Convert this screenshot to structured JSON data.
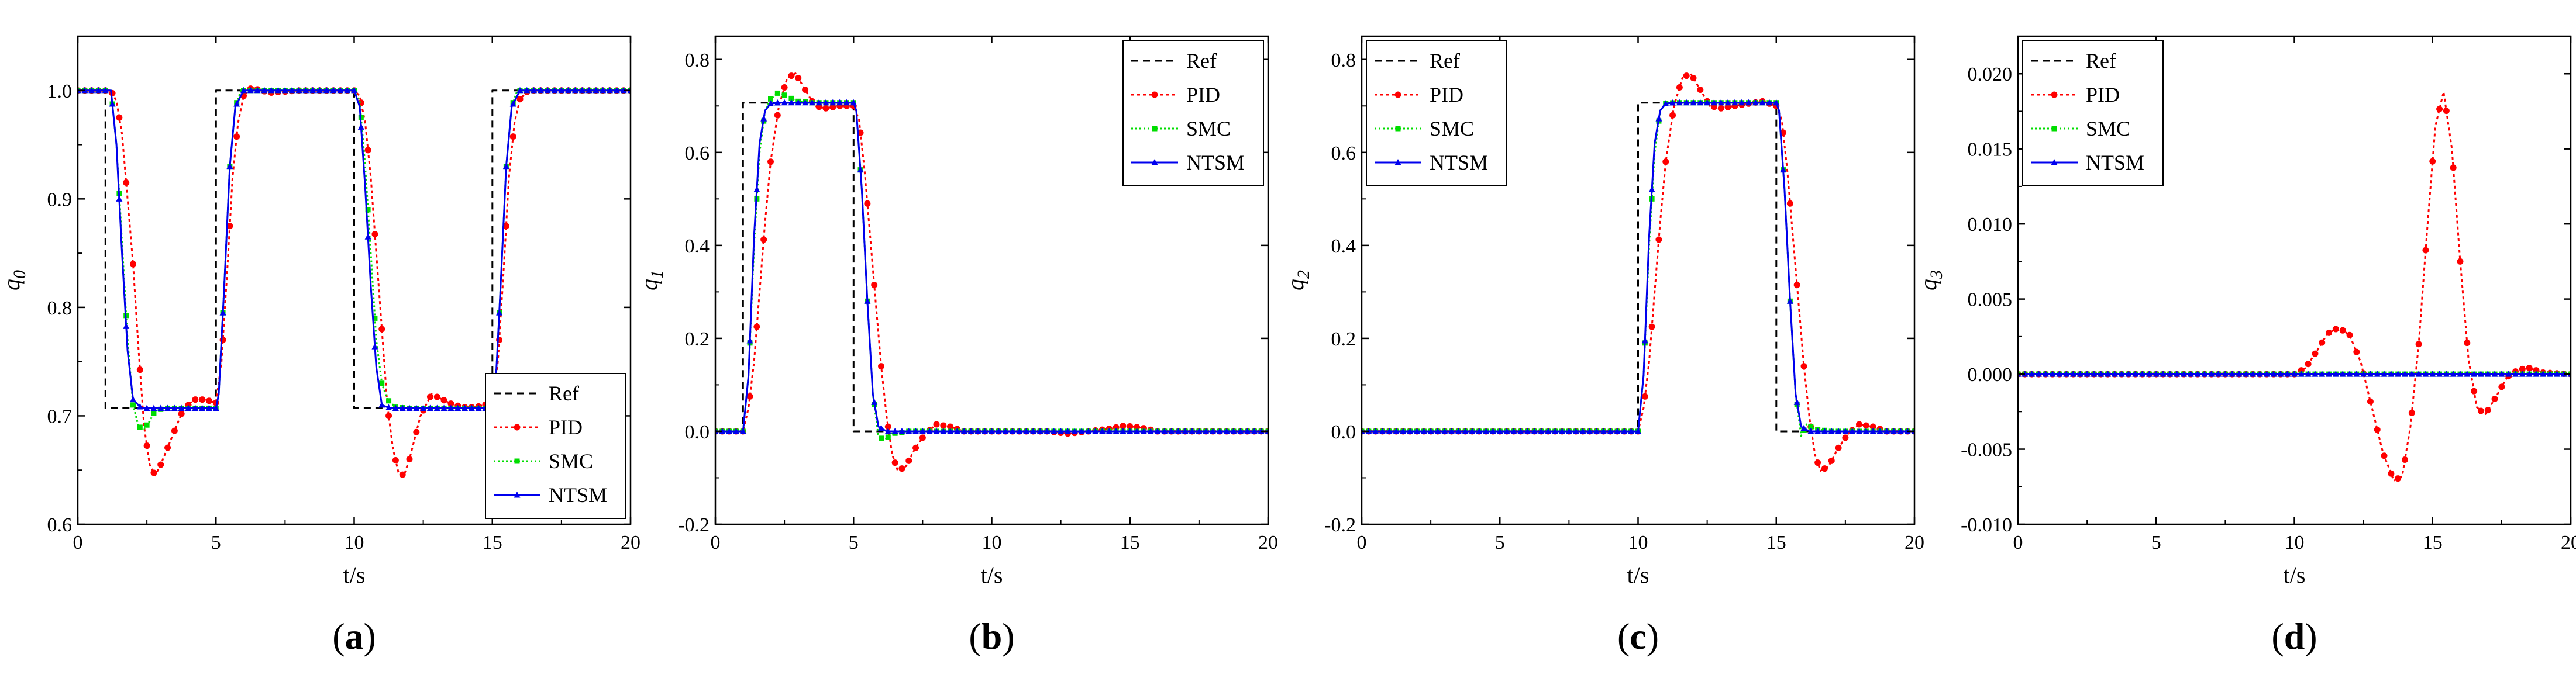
{
  "colors": {
    "ref": "#000000",
    "pid": "#ff0000",
    "smc": "#00dd00",
    "ntsm": "#0000ee"
  },
  "chart_data": [
    {
      "type": "line",
      "caption": {
        "open": "(",
        "letter": "a",
        "close": ")"
      },
      "ylabel": {
        "main": "q",
        "sub": "0"
      },
      "xlabel": "t/s",
      "xlim": [
        0,
        20
      ],
      "ylim": [
        0.6,
        1.05
      ],
      "xticks": [
        0,
        5,
        10,
        15,
        20
      ],
      "xticklabels": [
        "0",
        "5",
        "10",
        "15",
        "20"
      ],
      "yticks": [
        0.6,
        0.7,
        0.8,
        0.9,
        1.0
      ],
      "yticklabels": [
        "0.6",
        "0.7",
        "0.8",
        "0.9",
        "1.0"
      ],
      "legend_position": "bottom-right",
      "series": [
        {
          "name": "Ref",
          "key": "ref",
          "x": [
            0,
            1,
            1,
            5,
            5,
            10,
            10,
            15,
            15,
            20
          ],
          "y": [
            1.0,
            1.0,
            0.707,
            0.707,
            1.0,
            1.0,
            0.707,
            0.707,
            1.0,
            1.0
          ]
        },
        {
          "name": "PID",
          "key": "pid",
          "x": [
            0,
            1.2,
            1.4,
            1.6,
            1.8,
            2.0,
            2.2,
            2.4,
            2.6,
            2.8,
            3.0,
            3.4,
            3.8,
            4.2,
            4.6,
            5.0,
            5.2,
            5.4,
            5.6,
            5.8,
            6.0,
            6.3,
            6.6,
            7.0,
            7.5,
            8.0,
            8.5,
            9.0,
            10.0,
            10.2,
            10.4,
            10.6,
            10.8,
            11.0,
            11.2,
            11.4,
            11.6,
            11.8,
            12.0,
            12.4,
            12.8,
            13.2,
            13.6,
            14.0,
            14.4,
            15.0,
            15.2,
            15.4,
            15.6,
            15.8,
            16.0,
            16.3,
            16.6,
            17.0,
            17.5,
            18.0,
            19.0,
            20.0
          ],
          "y": [
            1.0,
            1.0,
            0.99,
            0.96,
            0.9,
            0.84,
            0.76,
            0.69,
            0.655,
            0.645,
            0.655,
            0.68,
            0.705,
            0.715,
            0.715,
            0.712,
            0.75,
            0.83,
            0.92,
            0.97,
            0.995,
            1.003,
            1.0,
            0.998,
            0.999,
            1.0,
            1.0,
            1.0,
            1.0,
            0.995,
            0.97,
            0.92,
            0.85,
            0.78,
            0.71,
            0.67,
            0.648,
            0.645,
            0.66,
            0.7,
            0.72,
            0.715,
            0.71,
            0.708,
            0.708,
            0.712,
            0.75,
            0.83,
            0.92,
            0.97,
            0.992,
            1.0,
            1.0,
            1.0,
            1.0,
            1.0,
            1.0,
            1.0
          ]
        },
        {
          "name": "SMC",
          "key": "smc",
          "x": [
            0,
            1.2,
            1.4,
            1.6,
            1.8,
            2.0,
            2.2,
            2.4,
            2.6,
            2.8,
            3.2,
            3.6,
            5.0,
            5.1,
            5.3,
            5.5,
            5.7,
            5.9,
            6.2,
            7.0,
            10.0,
            10.2,
            10.4,
            10.6,
            10.8,
            11.0,
            11.2,
            11.5,
            12.0,
            15.0,
            15.1,
            15.3,
            15.5,
            15.7,
            15.9,
            16.2,
            17.0,
            20.0
          ],
          "y": [
            1.0,
            1.0,
            0.95,
            0.86,
            0.77,
            0.71,
            0.69,
            0.688,
            0.695,
            0.705,
            0.707,
            0.707,
            0.707,
            0.72,
            0.82,
            0.93,
            0.985,
            1.0,
            1.0,
            1.0,
            1.0,
            0.99,
            0.93,
            0.85,
            0.77,
            0.73,
            0.715,
            0.708,
            0.707,
            0.707,
            0.72,
            0.82,
            0.93,
            0.985,
            1.0,
            1.0,
            1.0,
            1.0
          ]
        },
        {
          "name": "NTSM",
          "key": "ntsm",
          "x": [
            0,
            1.2,
            1.4,
            1.6,
            1.8,
            2.0,
            2.3,
            5.0,
            5.1,
            5.3,
            5.5,
            5.7,
            6.0,
            10.0,
            10.2,
            10.4,
            10.6,
            10.8,
            11.0,
            11.3,
            15.0,
            15.1,
            15.3,
            15.5,
            15.7,
            16.0,
            20.0
          ],
          "y": [
            1.0,
            1.0,
            0.95,
            0.85,
            0.76,
            0.715,
            0.707,
            0.707,
            0.72,
            0.82,
            0.93,
            0.985,
            1.0,
            1.0,
            0.985,
            0.91,
            0.82,
            0.745,
            0.71,
            0.707,
            0.707,
            0.72,
            0.82,
            0.93,
            0.985,
            1.0,
            1.0
          ]
        }
      ]
    },
    {
      "type": "line",
      "caption": {
        "open": "(",
        "letter": "b",
        "close": ")"
      },
      "ylabel": {
        "main": "q",
        "sub": "1"
      },
      "xlabel": "t/s",
      "xlim": [
        0,
        20
      ],
      "ylim": [
        -0.2,
        0.85
      ],
      "xticks": [
        0,
        5,
        10,
        15,
        20
      ],
      "xticklabels": [
        "0",
        "5",
        "10",
        "15",
        "20"
      ],
      "yticks": [
        -0.2,
        0.0,
        0.2,
        0.4,
        0.6,
        0.8
      ],
      "yticklabels": [
        "-0.2",
        "0.0",
        "0.2",
        "0.4",
        "0.6",
        "0.8"
      ],
      "legend_position": "top-right",
      "series": [
        {
          "name": "Ref",
          "key": "ref",
          "x": [
            0,
            1,
            1,
            5,
            5,
            20
          ],
          "y": [
            0.0,
            0.0,
            0.707,
            0.707,
            0.0,
            0.0
          ]
        },
        {
          "name": "PID",
          "key": "pid",
          "x": [
            0,
            1.0,
            1.2,
            1.4,
            1.6,
            1.8,
            2.0,
            2.3,
            2.6,
            2.9,
            3.2,
            3.6,
            4.0,
            4.5,
            5.0,
            5.2,
            5.4,
            5.6,
            5.8,
            6.0,
            6.2,
            6.4,
            6.6,
            6.9,
            7.2,
            7.6,
            8.0,
            8.5,
            9.0,
            10.0,
            11.0,
            12.0,
            12.8,
            13.5,
            14.2,
            14.8,
            15.4,
            16.0,
            17.0,
            20.0
          ],
          "y": [
            0.0,
            0.0,
            0.05,
            0.15,
            0.3,
            0.45,
            0.58,
            0.7,
            0.76,
            0.77,
            0.74,
            0.7,
            0.695,
            0.7,
            0.7,
            0.67,
            0.56,
            0.42,
            0.28,
            0.14,
            0.03,
            -0.05,
            -0.085,
            -0.075,
            -0.04,
            -0.005,
            0.015,
            0.01,
            0.0,
            0.0,
            0.0,
            0.0,
            -0.005,
            0.0,
            0.005,
            0.012,
            0.008,
            0.0,
            0.0,
            0.0
          ]
        },
        {
          "name": "SMC",
          "key": "smc",
          "x": [
            0,
            1.0,
            1.2,
            1.4,
            1.6,
            1.8,
            2.0,
            2.3,
            2.6,
            3.0,
            3.5,
            5.0,
            5.1,
            5.3,
            5.5,
            5.7,
            5.9,
            6.1,
            6.4,
            7.0,
            20.0
          ],
          "y": [
            0.0,
            0.0,
            0.12,
            0.4,
            0.6,
            0.69,
            0.715,
            0.73,
            0.72,
            0.71,
            0.707,
            0.707,
            0.69,
            0.52,
            0.28,
            0.08,
            -0.01,
            -0.02,
            -0.005,
            0.0,
            0.0
          ]
        },
        {
          "name": "NTSM",
          "key": "ntsm",
          "x": [
            0,
            1.0,
            1.2,
            1.4,
            1.6,
            1.8,
            2.0,
            2.3,
            5.0,
            5.1,
            5.3,
            5.5,
            5.7,
            5.9,
            6.2,
            20.0
          ],
          "y": [
            0.0,
            0.0,
            0.12,
            0.42,
            0.62,
            0.69,
            0.705,
            0.707,
            0.707,
            0.69,
            0.52,
            0.28,
            0.08,
            0.01,
            0.0,
            0.0
          ]
        }
      ]
    },
    {
      "type": "line",
      "caption": {
        "open": "(",
        "letter": "c",
        "close": ")"
      },
      "ylabel": {
        "main": "q",
        "sub": "2"
      },
      "xlabel": "t/s",
      "xlim": [
        0,
        20
      ],
      "ylim": [
        -0.2,
        0.85
      ],
      "xticks": [
        0,
        5,
        10,
        15,
        20
      ],
      "xticklabels": [
        "0",
        "5",
        "10",
        "15",
        "20"
      ],
      "yticks": [
        -0.2,
        0.0,
        0.2,
        0.4,
        0.6,
        0.8
      ],
      "yticklabels": [
        "-0.2",
        "0.0",
        "0.2",
        "0.4",
        "0.6",
        "0.8"
      ],
      "legend_position": "top-left",
      "series": [
        {
          "name": "Ref",
          "key": "ref",
          "x": [
            0,
            10,
            10,
            15,
            15,
            20
          ],
          "y": [
            0.0,
            0.0,
            0.707,
            0.707,
            0.0,
            0.0
          ]
        },
        {
          "name": "PID",
          "key": "pid",
          "x": [
            0,
            10.0,
            10.2,
            10.4,
            10.6,
            10.8,
            11.0,
            11.3,
            11.6,
            11.9,
            12.2,
            12.6,
            13.0,
            13.5,
            14.0,
            14.5,
            15.0,
            15.2,
            15.4,
            15.6,
            15.8,
            16.0,
            16.2,
            16.4,
            16.6,
            16.9,
            17.2,
            17.6,
            18.0,
            18.5,
            19.0,
            20.0
          ],
          "y": [
            0.0,
            0.0,
            0.05,
            0.15,
            0.3,
            0.45,
            0.58,
            0.7,
            0.76,
            0.77,
            0.74,
            0.7,
            0.695,
            0.7,
            0.705,
            0.71,
            0.7,
            0.67,
            0.56,
            0.42,
            0.28,
            0.14,
            0.03,
            -0.05,
            -0.085,
            -0.075,
            -0.04,
            -0.005,
            0.015,
            0.01,
            0.0,
            0.0
          ]
        },
        {
          "name": "SMC",
          "key": "smc",
          "x": [
            0,
            10.0,
            10.2,
            10.4,
            10.6,
            10.8,
            11.0,
            11.3,
            15.0,
            15.1,
            15.3,
            15.5,
            15.7,
            15.9,
            16.1,
            16.4,
            17.0,
            20.0
          ],
          "y": [
            0.0,
            0.0,
            0.12,
            0.4,
            0.6,
            0.69,
            0.705,
            0.707,
            0.707,
            0.69,
            0.52,
            0.28,
            0.08,
            -0.01,
            0.015,
            0.005,
            0.0,
            0.0
          ]
        },
        {
          "name": "NTSM",
          "key": "ntsm",
          "x": [
            0,
            10.0,
            10.2,
            10.4,
            10.6,
            10.8,
            11.0,
            11.3,
            15.0,
            15.1,
            15.3,
            15.5,
            15.7,
            15.9,
            16.2,
            20.0
          ],
          "y": [
            0.0,
            0.0,
            0.12,
            0.42,
            0.62,
            0.69,
            0.705,
            0.707,
            0.707,
            0.69,
            0.52,
            0.28,
            0.08,
            0.01,
            0.0,
            0.0
          ]
        }
      ]
    },
    {
      "type": "line",
      "caption": {
        "open": "(",
        "letter": "d",
        "close": ")"
      },
      "ylabel": {
        "main": "q",
        "sub": "3"
      },
      "xlabel": "t/s",
      "xlim": [
        0,
        20
      ],
      "ylim": [
        -0.01,
        0.0225
      ],
      "xticks": [
        0,
        5,
        10,
        15,
        20
      ],
      "xticklabels": [
        "0",
        "5",
        "10",
        "15",
        "20"
      ],
      "yticks": [
        -0.01,
        -0.005,
        0.0,
        0.005,
        0.01,
        0.015,
        0.02
      ],
      "yticklabels": [
        "-0.010",
        "-0.005",
        "0.000",
        "0.005",
        "0.010",
        "0.015",
        "0.020"
      ],
      "legend_position": "top-left",
      "series": [
        {
          "name": "Ref",
          "key": "ref",
          "x": [
            0,
            20
          ],
          "y": [
            0.0,
            0.0
          ]
        },
        {
          "name": "PID",
          "key": "pid",
          "x": [
            0,
            10.0,
            10.4,
            10.8,
            11.2,
            11.6,
            12.0,
            12.4,
            12.8,
            13.2,
            13.6,
            13.9,
            14.2,
            14.5,
            14.8,
            15.1,
            15.4,
            15.7,
            16.0,
            16.3,
            16.6,
            16.9,
            17.3,
            17.7,
            18.1,
            18.5,
            19.0,
            20.0
          ],
          "y": [
            0.0,
            0.0,
            0.0004,
            0.0015,
            0.0027,
            0.0031,
            0.0026,
            0.0008,
            -0.0022,
            -0.0052,
            -0.0071,
            -0.0068,
            -0.0035,
            0.002,
            0.0095,
            0.0165,
            0.0188,
            0.015,
            0.0075,
            0.001,
            -0.0022,
            -0.0027,
            -0.0015,
            -0.0002,
            0.0003,
            0.0004,
            0.0001,
            0.0
          ]
        },
        {
          "name": "SMC",
          "key": "smc",
          "x": [
            0,
            20
          ],
          "y": [
            0.0,
            0.0
          ]
        },
        {
          "name": "NTSM",
          "key": "ntsm",
          "x": [
            0,
            20
          ],
          "y": [
            0.0,
            0.0
          ]
        }
      ]
    }
  ]
}
